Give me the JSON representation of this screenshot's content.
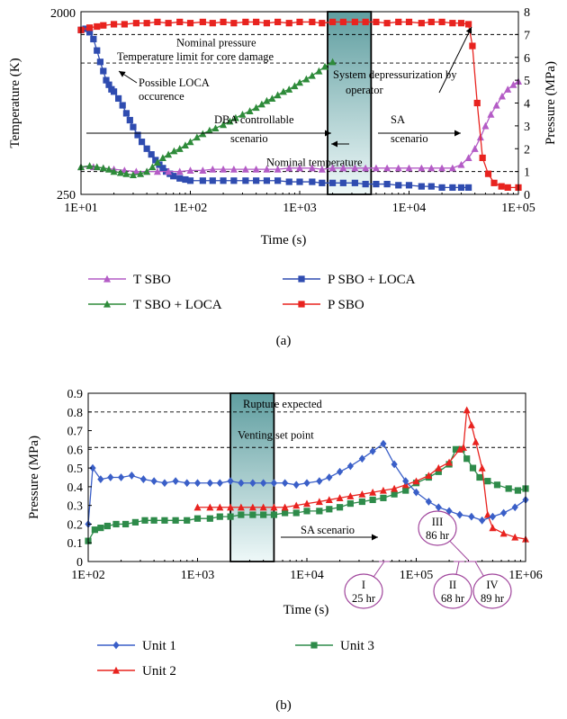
{
  "colors": {
    "t_sbo": "#b45cc6",
    "t_sbo_loca": "#2e8b3a",
    "p_sbo_loca": "#2f4cb0",
    "p_sbo": "#e8231f",
    "unit1": "#3a5fc8",
    "unit2": "#e8231f",
    "unit3": "#2e8b4a",
    "shade_top": "#5f9ea0",
    "shade_bottom": "#eef8f8",
    "callout": "#a0459c"
  },
  "chart_data": [
    {
      "id": "a",
      "type": "line",
      "panel_label": "(a)",
      "xlabel": "Time (s)",
      "ylabel_left": "Temperature (K)",
      "ylabel_right": "Pressure (MPa)",
      "x_scale": "log",
      "xlim": [
        10,
        100000
      ],
      "x_ticks": [
        "1E+01",
        "1E+02",
        "1E+03",
        "1E+04",
        "1E+05"
      ],
      "ylim_left": [
        250,
        2000
      ],
      "y_ticks_left": [
        "2000",
        "250"
      ],
      "ylim_right": [
        0,
        8
      ],
      "y_ticks_right": [
        "0",
        "1",
        "2",
        "3",
        "4",
        "5",
        "6",
        "7",
        "8"
      ],
      "shaded_region_x": [
        1800,
        4500
      ],
      "hlines": [
        {
          "axis": "right",
          "y": 7.0,
          "label": "Nominal pressure"
        },
        {
          "axis": "right",
          "y": 5.75,
          "label": "Temperature limit for core damage"
        },
        {
          "axis": "right",
          "y": 1.0,
          "label": "Nominal temperature"
        }
      ],
      "annotations": [
        {
          "text": "Possible LOCA",
          "x": 20,
          "y": 4.95
        },
        {
          "text": "occurence",
          "x": 20,
          "y": 4.4
        },
        {
          "text": "DBA controllable",
          "x": 100,
          "y": 3.4
        },
        {
          "text": "scenario",
          "x": 100,
          "y": 2.75
        },
        {
          "text": "System depressurization by",
          "x": 1900,
          "y": 5.15
        },
        {
          "text": "operator",
          "x": 1900,
          "y": 4.55
        },
        {
          "text": "SA",
          "x": 5000,
          "y": 3.4
        },
        {
          "text": "scenario",
          "x": 5000,
          "y": 2.75
        }
      ],
      "series": [
        {
          "name": "T SBO",
          "axis": "right",
          "marker": "triangle",
          "x": [
            10,
            13,
            16,
            20,
            25,
            32,
            40,
            50,
            63,
            80,
            100,
            130,
            160,
            200,
            250,
            320,
            400,
            500,
            630,
            800,
            1000,
            1300,
            1600,
            2000,
            2500,
            3200,
            4000,
            5000,
            6300,
            8000,
            10000,
            13000,
            16000,
            20000,
            25000,
            30000,
            35000,
            40000,
            45000,
            50000,
            56000,
            63000,
            71000,
            80000,
            90000,
            100000
          ],
          "y": [
            1.2,
            1.2,
            1.15,
            1.1,
            1.05,
            1.0,
            1.0,
            1.0,
            1.0,
            1.0,
            1.05,
            1.05,
            1.1,
            1.1,
            1.1,
            1.1,
            1.1,
            1.1,
            1.1,
            1.15,
            1.15,
            1.15,
            1.1,
            1.15,
            1.15,
            1.15,
            1.15,
            1.15,
            1.15,
            1.15,
            1.15,
            1.15,
            1.15,
            1.15,
            1.15,
            1.3,
            1.6,
            2.0,
            2.5,
            3.0,
            3.5,
            3.9,
            4.3,
            4.6,
            4.8,
            4.95
          ]
        },
        {
          "name": "T SBO + LOCA",
          "axis": "right",
          "marker": "triangle",
          "x": [
            10,
            12,
            14,
            16,
            18,
            20,
            23,
            26,
            30,
            35,
            40,
            45,
            50,
            56,
            63,
            71,
            80,
            90,
            100,
            115,
            130,
            150,
            170,
            200,
            230,
            260,
            300,
            350,
            400,
            450,
            500,
            560,
            630,
            710,
            800,
            900,
            1000,
            1150,
            1300,
            1500,
            1700,
            2000
          ],
          "y": [
            1.2,
            1.25,
            1.2,
            1.15,
            1.1,
            1.0,
            0.95,
            0.9,
            0.85,
            0.9,
            1.0,
            1.2,
            1.4,
            1.6,
            1.75,
            1.9,
            2.0,
            2.15,
            2.3,
            2.5,
            2.65,
            2.8,
            2.9,
            3.05,
            3.2,
            3.35,
            3.5,
            3.65,
            3.8,
            3.95,
            4.1,
            4.2,
            4.35,
            4.5,
            4.6,
            4.75,
            4.9,
            5.05,
            5.2,
            5.4,
            5.6,
            5.8
          ]
        },
        {
          "name": "P SBO + LOCA",
          "axis": "right",
          "marker": "square",
          "x": [
            10,
            11,
            12,
            13,
            14,
            15,
            16,
            17,
            18,
            19,
            20,
            22,
            24,
            26,
            28,
            30,
            33,
            36,
            40,
            44,
            48,
            52,
            56,
            60,
            65,
            70,
            80,
            90,
            100,
            130,
            160,
            200,
            250,
            320,
            400,
            500,
            630,
            800,
            1000,
            1300,
            1600,
            2000,
            2500,
            3200,
            4000,
            5000,
            6300,
            8000,
            10000,
            13000,
            16000,
            20000,
            25000,
            30000,
            35000
          ],
          "y": [
            7.2,
            7.25,
            7.1,
            6.8,
            6.3,
            5.8,
            5.4,
            5.0,
            4.8,
            4.6,
            4.5,
            4.2,
            3.9,
            3.55,
            3.25,
            2.95,
            2.6,
            2.3,
            2.0,
            1.75,
            1.5,
            1.3,
            1.15,
            1.0,
            0.9,
            0.8,
            0.7,
            0.65,
            0.6,
            0.6,
            0.6,
            0.6,
            0.6,
            0.6,
            0.6,
            0.6,
            0.6,
            0.55,
            0.55,
            0.55,
            0.5,
            0.5,
            0.5,
            0.5,
            0.45,
            0.45,
            0.45,
            0.4,
            0.4,
            0.35,
            0.35,
            0.3,
            0.3,
            0.3,
            0.3
          ]
        },
        {
          "name": "P SBO",
          "axis": "right",
          "marker": "square",
          "x": [
            10,
            12,
            14,
            16,
            20,
            25,
            32,
            40,
            50,
            63,
            80,
            100,
            130,
            160,
            200,
            250,
            320,
            400,
            500,
            630,
            800,
            1000,
            1300,
            1600,
            2000,
            2500,
            3200,
            4000,
            5000,
            6300,
            8000,
            10000,
            13000,
            16000,
            20000,
            25000,
            30000,
            35000,
            38000,
            42000,
            47000,
            53000,
            60000,
            70000,
            80000,
            100000
          ],
          "y": [
            7.2,
            7.3,
            7.35,
            7.4,
            7.45,
            7.45,
            7.5,
            7.5,
            7.55,
            7.5,
            7.55,
            7.5,
            7.55,
            7.5,
            7.55,
            7.5,
            7.55,
            7.55,
            7.5,
            7.55,
            7.5,
            7.55,
            7.55,
            7.5,
            7.55,
            7.55,
            7.55,
            7.55,
            7.55,
            7.5,
            7.55,
            7.55,
            7.5,
            7.55,
            7.55,
            7.5,
            7.5,
            7.45,
            6.5,
            4.0,
            1.6,
            0.9,
            0.5,
            0.35,
            0.3,
            0.3
          ]
        }
      ],
      "legend": [
        "T SBO",
        "T SBO + LOCA",
        "P SBO + LOCA",
        "P SBO"
      ]
    },
    {
      "id": "b",
      "type": "line",
      "panel_label": "(b)",
      "xlabel": "Time (s)",
      "ylabel": "Pressure (MPa)",
      "x_scale": "log",
      "xlim": [
        100,
        1000000
      ],
      "x_ticks": [
        "1E+02",
        "1E+03",
        "1E+04",
        "1E+05",
        "1E+06"
      ],
      "ylim": [
        0,
        0.9
      ],
      "y_ticks": [
        "0",
        "0.1",
        "0.2",
        "0.3",
        "0.4",
        "0.5",
        "0.6",
        "0.7",
        "0.8",
        "0.9"
      ],
      "shaded_region_x": [
        2000,
        5000
      ],
      "hlines": [
        {
          "y": 0.8,
          "label": "Rupture expected"
        },
        {
          "y": 0.61,
          "label": "Venting set point"
        }
      ],
      "annotations": [
        {
          "text": "SA scenario",
          "x": 5000,
          "y": 0.28
        }
      ],
      "callouts": [
        {
          "roman": "I",
          "hours": "25 hr",
          "x": 50000
        },
        {
          "roman": "II",
          "hours": "68 hr",
          "x": 220000
        },
        {
          "roman": "III",
          "hours": "86 hr",
          "x": 290000
        },
        {
          "roman": "IV",
          "hours": "89 hr",
          "x": 320000
        }
      ],
      "series": [
        {
          "name": "Unit 1",
          "marker": "diamond",
          "x": [
            100,
            110,
            130,
            160,
            200,
            250,
            320,
            400,
            500,
            630,
            800,
            1000,
            1300,
            1600,
            2000,
            2500,
            3200,
            4000,
            5000,
            6300,
            8000,
            10000,
            13000,
            16000,
            20000,
            25000,
            32000,
            40000,
            50000,
            63000,
            80000,
            100000,
            130000,
            160000,
            200000,
            250000,
            320000,
            400000,
            500000,
            630000,
            800000,
            1000000
          ],
          "y": [
            0.2,
            0.5,
            0.44,
            0.45,
            0.45,
            0.46,
            0.44,
            0.43,
            0.42,
            0.43,
            0.42,
            0.42,
            0.42,
            0.42,
            0.43,
            0.42,
            0.42,
            0.42,
            0.42,
            0.42,
            0.41,
            0.42,
            0.43,
            0.45,
            0.48,
            0.51,
            0.55,
            0.59,
            0.63,
            0.52,
            0.43,
            0.37,
            0.32,
            0.29,
            0.27,
            0.25,
            0.24,
            0.22,
            0.24,
            0.26,
            0.29,
            0.33
          ]
        },
        {
          "name": "Unit 2",
          "marker": "triangle",
          "x": [
            1000,
            1300,
            1600,
            2000,
            2500,
            3200,
            4000,
            5000,
            6300,
            8000,
            10000,
            13000,
            16000,
            20000,
            25000,
            32000,
            40000,
            50000,
            63000,
            80000,
            100000,
            130000,
            160000,
            200000,
            250000,
            270000,
            290000,
            320000,
            350000,
            400000,
            450000,
            500000,
            630000,
            800000,
            1000000
          ],
          "y": [
            0.29,
            0.29,
            0.29,
            0.29,
            0.29,
            0.29,
            0.29,
            0.29,
            0.29,
            0.3,
            0.31,
            0.32,
            0.33,
            0.34,
            0.35,
            0.36,
            0.37,
            0.38,
            0.39,
            0.41,
            0.43,
            0.46,
            0.5,
            0.53,
            0.6,
            0.61,
            0.81,
            0.73,
            0.64,
            0.5,
            0.25,
            0.18,
            0.15,
            0.13,
            0.12
          ]
        },
        {
          "name": "Unit 3",
          "marker": "square",
          "x": [
            100,
            115,
            130,
            150,
            180,
            220,
            270,
            330,
            400,
            500,
            630,
            800,
            1000,
            1300,
            1600,
            2000,
            2500,
            3200,
            4000,
            5000,
            6300,
            8000,
            10000,
            13000,
            16000,
            20000,
            25000,
            32000,
            40000,
            50000,
            63000,
            80000,
            100000,
            130000,
            160000,
            200000,
            230000,
            260000,
            290000,
            330000,
            380000,
            450000,
            550000,
            700000,
            850000,
            1000000
          ],
          "y": [
            0.11,
            0.17,
            0.18,
            0.19,
            0.2,
            0.2,
            0.21,
            0.22,
            0.22,
            0.22,
            0.22,
            0.22,
            0.23,
            0.23,
            0.24,
            0.24,
            0.25,
            0.25,
            0.25,
            0.25,
            0.26,
            0.26,
            0.27,
            0.27,
            0.28,
            0.29,
            0.31,
            0.32,
            0.33,
            0.34,
            0.36,
            0.38,
            0.42,
            0.45,
            0.48,
            0.52,
            0.6,
            0.6,
            0.55,
            0.5,
            0.45,
            0.43,
            0.41,
            0.39,
            0.38,
            0.39
          ]
        }
      ],
      "legend": [
        "Unit 1",
        "Unit 2",
        "Unit 3"
      ]
    }
  ]
}
